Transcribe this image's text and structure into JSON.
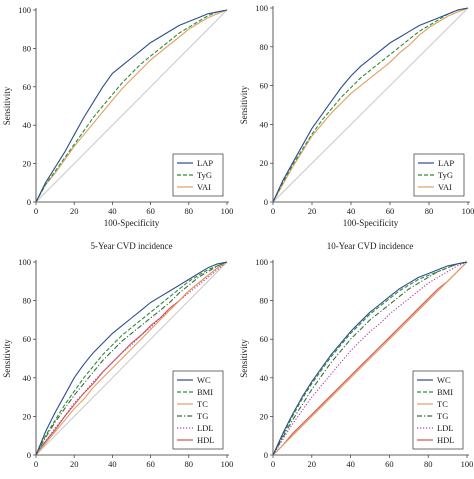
{
  "chart_data": [
    {
      "type": "line",
      "title": "",
      "xlabel": "100-Specificity",
      "ylabel": "Sensitivity",
      "xlim": [
        0,
        100
      ],
      "ylim": [
        0,
        100
      ],
      "xticks": [
        0,
        20,
        40,
        60,
        80,
        100
      ],
      "yticks": [
        0,
        20,
        40,
        60,
        80,
        100
      ],
      "xtick_labels": [
        "0",
        "20",
        "40",
        "60",
        "80",
        "100"
      ],
      "ytick_labels": [
        "0",
        "20",
        "40",
        "60",
        "80",
        "100"
      ],
      "legend": "bottom-right",
      "reference_line": true,
      "series": [
        {
          "name": "LAP",
          "color": "#2c4e8c",
          "dash": "solid",
          "x": [
            0,
            5,
            10,
            15,
            20,
            25,
            30,
            35,
            40,
            45,
            50,
            55,
            60,
            65,
            70,
            75,
            80,
            85,
            90,
            95,
            100
          ],
          "y": [
            0,
            10,
            18,
            26,
            35,
            44,
            52,
            60,
            67,
            71,
            75,
            79,
            83,
            86,
            89,
            92,
            94,
            96,
            98,
            99,
            100
          ]
        },
        {
          "name": "TyG",
          "color": "#2e8b3c",
          "dash": "dashed",
          "x": [
            0,
            5,
            10,
            15,
            20,
            25,
            30,
            35,
            40,
            45,
            50,
            55,
            60,
            65,
            70,
            75,
            80,
            85,
            90,
            95,
            100
          ],
          "y": [
            0,
            9,
            16,
            23,
            30,
            37,
            44,
            50,
            56,
            62,
            67,
            72,
            76,
            80,
            84,
            88,
            91,
            94,
            97,
            99,
            100
          ]
        },
        {
          "name": "VAI",
          "color": "#e0a060",
          "dash": "solid",
          "x": [
            0,
            5,
            10,
            15,
            20,
            25,
            30,
            35,
            40,
            45,
            50,
            55,
            60,
            65,
            70,
            75,
            80,
            85,
            90,
            95,
            100
          ],
          "y": [
            0,
            9,
            15,
            22,
            29,
            35,
            41,
            47,
            53,
            59,
            64,
            69,
            74,
            78,
            82,
            86,
            90,
            93,
            96,
            98,
            100
          ]
        }
      ]
    },
    {
      "type": "line",
      "title": "",
      "xlabel": "100-Specificity",
      "ylabel": "Sensitivity",
      "xlim": [
        0,
        100
      ],
      "ylim": [
        0,
        100
      ],
      "xticks": [
        0,
        20,
        40,
        60,
        80,
        100
      ],
      "yticks": [
        0,
        20,
        40,
        60,
        80,
        100
      ],
      "xtick_labels": [
        "0",
        "20",
        "40",
        "60",
        "80",
        "100"
      ],
      "ytick_labels": [
        "0",
        "20",
        "40",
        "60",
        "80",
        "100"
      ],
      "legend": "bottom-right",
      "reference_line": true,
      "series": [
        {
          "name": "LAP",
          "color": "#2c4e8c",
          "dash": "solid",
          "x": [
            0,
            5,
            10,
            15,
            20,
            25,
            30,
            35,
            40,
            45,
            50,
            55,
            60,
            65,
            70,
            75,
            80,
            85,
            90,
            95,
            100
          ],
          "y": [
            0,
            11,
            20,
            29,
            38,
            45,
            52,
            59,
            65,
            70,
            74,
            78,
            82,
            85,
            88,
            91,
            93,
            95,
            97,
            99,
            100
          ]
        },
        {
          "name": "TyG",
          "color": "#2e8b3c",
          "dash": "dashed",
          "x": [
            0,
            5,
            10,
            15,
            20,
            25,
            30,
            35,
            40,
            45,
            50,
            55,
            60,
            65,
            70,
            75,
            80,
            85,
            90,
            95,
            100
          ],
          "y": [
            0,
            10,
            19,
            27,
            35,
            42,
            48,
            54,
            59,
            64,
            68,
            72,
            76,
            80,
            84,
            88,
            91,
            94,
            97,
            99,
            100
          ]
        },
        {
          "name": "VAI",
          "color": "#e0a060",
          "dash": "solid",
          "x": [
            0,
            5,
            10,
            15,
            20,
            25,
            30,
            35,
            40,
            45,
            50,
            55,
            60,
            65,
            70,
            75,
            80,
            85,
            90,
            95,
            100
          ],
          "y": [
            0,
            9,
            18,
            26,
            34,
            40,
            46,
            51,
            56,
            60,
            64,
            68,
            72,
            77,
            81,
            86,
            90,
            93,
            96,
            98,
            100
          ]
        }
      ]
    },
    {
      "type": "line",
      "title": "5-Year CVD incidence",
      "xlabel": "",
      "ylabel": "Sensitivity",
      "xlim": [
        0,
        100
      ],
      "ylim": [
        0,
        100
      ],
      "xticks": [
        0,
        20,
        40,
        60,
        80,
        100
      ],
      "yticks": [
        0,
        20,
        40,
        60,
        80,
        100
      ],
      "xtick_labels": [
        "0",
        "20",
        "40",
        "60",
        "80",
        "100"
      ],
      "ytick_labels": [
        "0",
        "20",
        "40",
        "60",
        "80",
        "100"
      ],
      "legend": "bottom-right",
      "reference_line": true,
      "series": [
        {
          "name": "WC",
          "color": "#2c4e8c",
          "dash": "solid",
          "x": [
            0,
            5,
            10,
            15,
            20,
            25,
            30,
            35,
            40,
            45,
            50,
            55,
            60,
            65,
            70,
            75,
            80,
            85,
            90,
            95,
            100
          ],
          "y": [
            0,
            12,
            22,
            31,
            40,
            47,
            53,
            58,
            63,
            67,
            71,
            75,
            79,
            82,
            85,
            88,
            91,
            94,
            97,
            99,
            100
          ]
        },
        {
          "name": "BMI",
          "color": "#2e8b3c",
          "dash": "dashed",
          "x": [
            0,
            5,
            10,
            15,
            20,
            25,
            30,
            35,
            40,
            45,
            50,
            55,
            60,
            65,
            70,
            75,
            80,
            85,
            90,
            95,
            100
          ],
          "y": [
            0,
            10,
            18,
            26,
            33,
            40,
            46,
            52,
            57,
            62,
            66,
            70,
            74,
            78,
            82,
            86,
            90,
            93,
            96,
            98,
            100
          ]
        },
        {
          "name": "TC",
          "color": "#e0a060",
          "dash": "solid",
          "x": [
            0,
            5,
            10,
            15,
            20,
            25,
            30,
            35,
            40,
            45,
            50,
            55,
            60,
            65,
            70,
            75,
            80,
            85,
            90,
            95,
            100
          ],
          "y": [
            0,
            6,
            12,
            18,
            24,
            29,
            35,
            40,
            45,
            50,
            55,
            60,
            65,
            70,
            75,
            80,
            85,
            89,
            93,
            97,
            100
          ]
        },
        {
          "name": "TG",
          "color": "#3a6b3a",
          "dash": "dashdot",
          "x": [
            0,
            5,
            10,
            15,
            20,
            25,
            30,
            35,
            40,
            45,
            50,
            55,
            60,
            65,
            70,
            75,
            80,
            85,
            90,
            95,
            100
          ],
          "y": [
            0,
            9,
            17,
            24,
            31,
            37,
            43,
            49,
            54,
            59,
            63,
            67,
            71,
            75,
            79,
            84,
            88,
            92,
            95,
            98,
            100
          ]
        },
        {
          "name": "LDL",
          "color": "#b03ab0",
          "dash": "dotted",
          "x": [
            0,
            5,
            10,
            15,
            20,
            25,
            30,
            35,
            40,
            45,
            50,
            55,
            60,
            65,
            70,
            75,
            80,
            85,
            90,
            95,
            100
          ],
          "y": [
            0,
            7,
            14,
            20,
            27,
            32,
            38,
            43,
            48,
            53,
            57,
            62,
            66,
            71,
            75,
            80,
            84,
            88,
            92,
            96,
            100
          ]
        },
        {
          "name": "HDL",
          "color": "#d9534f",
          "dash": "solid",
          "x": [
            0,
            5,
            10,
            15,
            20,
            25,
            30,
            35,
            40,
            45,
            50,
            55,
            60,
            65,
            70,
            75,
            80,
            85,
            90,
            95,
            100
          ],
          "y": [
            0,
            7,
            13,
            20,
            26,
            32,
            37,
            43,
            48,
            53,
            58,
            62,
            67,
            71,
            76,
            80,
            85,
            89,
            93,
            97,
            100
          ]
        }
      ]
    },
    {
      "type": "line",
      "title": "10-Year CVD incidence",
      "xlabel": "",
      "ylabel": "Sensitivity",
      "xlim": [
        0,
        100
      ],
      "ylim": [
        0,
        100
      ],
      "xticks": [
        0,
        20,
        40,
        60,
        80,
        100
      ],
      "yticks": [
        0,
        20,
        40,
        60,
        80,
        100
      ],
      "xtick_labels": [
        "0",
        "20",
        "40",
        "60",
        "80",
        "100"
      ],
      "ytick_labels": [
        "0",
        "20",
        "40",
        "60",
        "80",
        "100"
      ],
      "legend": "bottom-right",
      "reference_line": true,
      "series": [
        {
          "name": "WC",
          "color": "#2c4e8c",
          "dash": "solid",
          "x": [
            0,
            5,
            10,
            15,
            20,
            25,
            30,
            35,
            40,
            45,
            50,
            55,
            60,
            65,
            70,
            75,
            80,
            85,
            90,
            95,
            100
          ],
          "y": [
            0,
            11,
            21,
            30,
            38,
            45,
            52,
            58,
            64,
            69,
            74,
            78,
            82,
            86,
            89,
            92,
            94,
            96,
            98,
            99,
            100
          ]
        },
        {
          "name": "BMI",
          "color": "#2e8b3c",
          "dash": "dashed",
          "x": [
            0,
            5,
            10,
            15,
            20,
            25,
            30,
            35,
            40,
            45,
            50,
            55,
            60,
            65,
            70,
            75,
            80,
            85,
            90,
            95,
            100
          ],
          "y": [
            0,
            10,
            20,
            29,
            37,
            44,
            51,
            57,
            63,
            68,
            73,
            77,
            81,
            85,
            88,
            91,
            93,
            95,
            97,
            99,
            100
          ]
        },
        {
          "name": "TC",
          "color": "#e0a060",
          "dash": "solid",
          "x": [
            0,
            5,
            10,
            15,
            20,
            25,
            30,
            35,
            40,
            45,
            50,
            55,
            60,
            65,
            70,
            75,
            80,
            85,
            90,
            95,
            100
          ],
          "y": [
            0,
            5,
            10,
            15,
            20,
            25,
            30,
            35,
            40,
            45,
            50,
            55,
            60,
            65,
            70,
            75,
            80,
            85,
            90,
            95,
            100
          ]
        },
        {
          "name": "TG",
          "color": "#3a6b3a",
          "dash": "dashdot",
          "x": [
            0,
            5,
            10,
            15,
            20,
            25,
            30,
            35,
            40,
            45,
            50,
            55,
            60,
            65,
            70,
            75,
            80,
            85,
            90,
            95,
            100
          ],
          "y": [
            0,
            9,
            18,
            26,
            34,
            41,
            48,
            54,
            60,
            65,
            70,
            74,
            78,
            82,
            86,
            89,
            92,
            95,
            97,
            99,
            100
          ]
        },
        {
          "name": "LDL",
          "color": "#b03ab0",
          "dash": "dotted",
          "x": [
            0,
            5,
            10,
            15,
            20,
            25,
            30,
            35,
            40,
            45,
            50,
            55,
            60,
            65,
            70,
            75,
            80,
            85,
            90,
            95,
            100
          ],
          "y": [
            0,
            8,
            16,
            23,
            30,
            36,
            42,
            48,
            54,
            59,
            64,
            68,
            73,
            77,
            81,
            85,
            89,
            92,
            95,
            98,
            100
          ]
        },
        {
          "name": "HDL",
          "color": "#d9534f",
          "dash": "solid",
          "x": [
            0,
            5,
            10,
            15,
            20,
            25,
            30,
            35,
            40,
            45,
            50,
            55,
            60,
            65,
            70,
            75,
            80,
            85,
            90,
            95,
            100
          ],
          "y": [
            0,
            5,
            11,
            16,
            21,
            26,
            31,
            36,
            41,
            46,
            51,
            56,
            61,
            66,
            71,
            76,
            81,
            86,
            90,
            95,
            100
          ]
        }
      ]
    }
  ]
}
